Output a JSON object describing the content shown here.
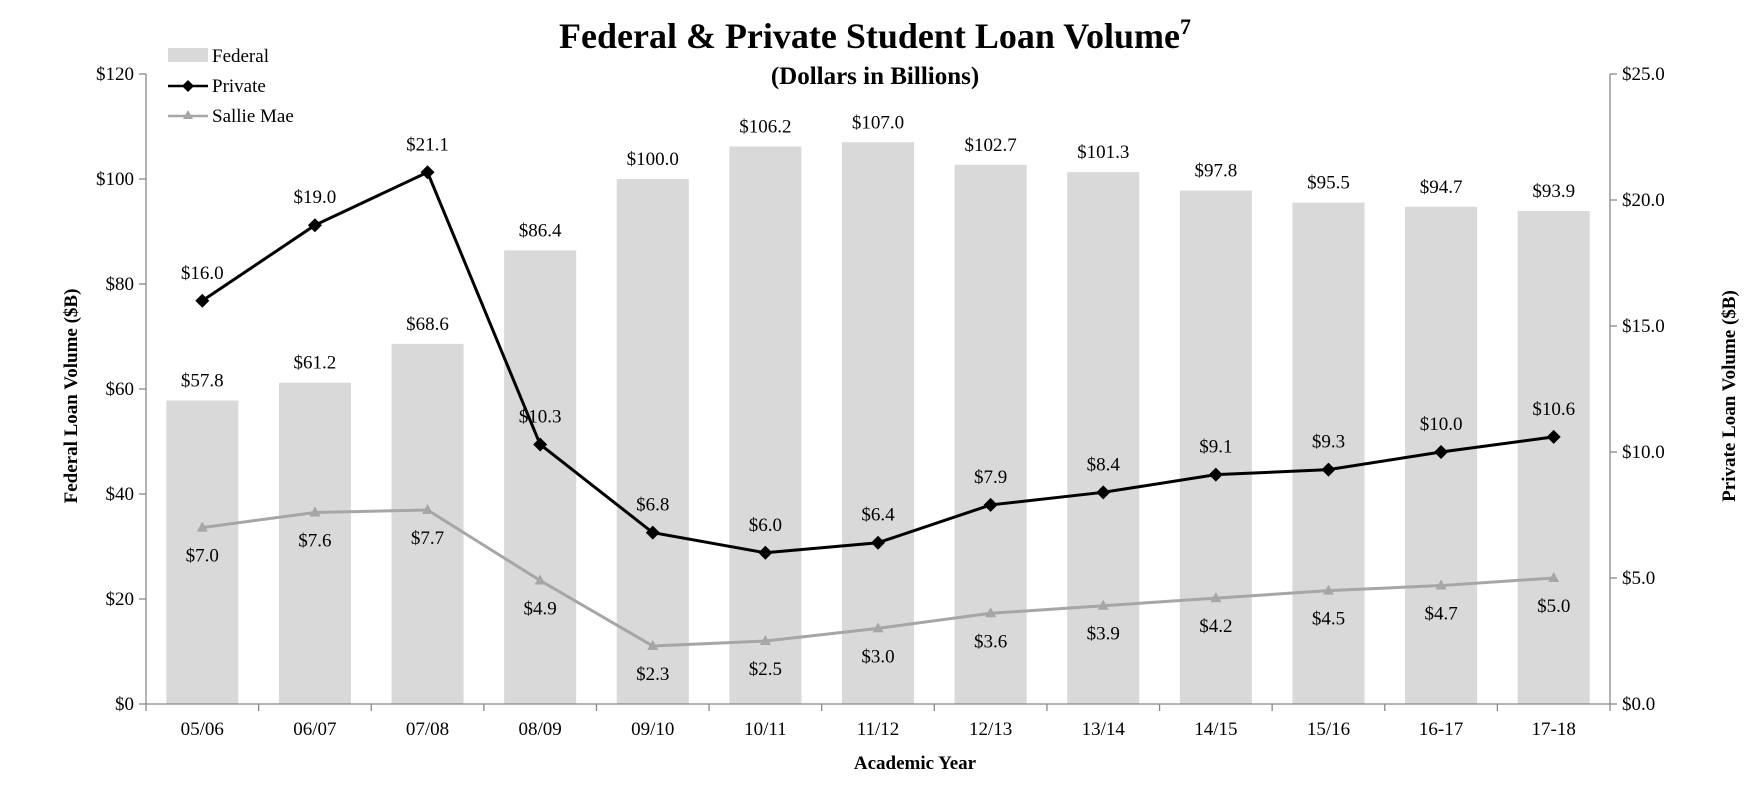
{
  "chart_data": {
    "type": "bar",
    "title": "Federal & Private Student Loan Volume",
    "title_superscript": "7",
    "subtitle": "(Dollars in Billions)",
    "xlabel": "Academic Year",
    "ylabel": "Federal Loan Volume ($B)",
    "ylabel_right": "Private Loan Volume ($B)",
    "ylim": [
      0,
      120
    ],
    "ylim_right": [
      0,
      25
    ],
    "y_ticks": [
      {
        "value": 0,
        "label": "$0"
      },
      {
        "value": 20,
        "label": "$20"
      },
      {
        "value": 40,
        "label": "$40"
      },
      {
        "value": 60,
        "label": "$60"
      },
      {
        "value": 80,
        "label": "$80"
      },
      {
        "value": 100,
        "label": "$100"
      },
      {
        "value": 120,
        "label": "$120"
      }
    ],
    "y_ticks_right": [
      {
        "value": 0,
        "label": "$0.0"
      },
      {
        "value": 5,
        "label": "$5.0"
      },
      {
        "value": 10,
        "label": "$10.0"
      },
      {
        "value": 15,
        "label": "$15.0"
      },
      {
        "value": 20,
        "label": "$20.0"
      },
      {
        "value": 25,
        "label": "$25.0"
      }
    ],
    "grid": false,
    "legend_position": "top-left",
    "categories": [
      "05/06",
      "06/07",
      "07/08",
      "08/09",
      "09/10",
      "10/11",
      "11/12",
      "12/13",
      "13/14",
      "14/15",
      "15/16",
      "16-17",
      "17-18"
    ],
    "series": [
      {
        "name": "Federal",
        "type": "bar",
        "axis": "left",
        "color": "#d9d9d9",
        "values": [
          57.8,
          61.2,
          68.6,
          86.4,
          100.0,
          106.2,
          107.0,
          102.7,
          101.3,
          97.8,
          95.5,
          94.7,
          93.9
        ],
        "labels": [
          "$57.8",
          "$61.2",
          "$68.6",
          "$86.4",
          "$100.0",
          "$106.2",
          "$107.0",
          "$102.7",
          "$101.3",
          "$97.8",
          "$95.5",
          "$94.7",
          "$93.9"
        ]
      },
      {
        "name": "Private",
        "type": "line",
        "axis": "right",
        "color": "#000000",
        "marker": "diamond",
        "values": [
          16.0,
          19.0,
          21.1,
          10.3,
          6.8,
          6.0,
          6.4,
          7.9,
          8.4,
          9.1,
          9.3,
          10.0,
          10.6
        ],
        "labels": [
          "$16.0",
          "$19.0",
          "$21.1",
          "$10.3",
          "$6.8",
          "$6.0",
          "$6.4",
          "$7.9",
          "$8.4",
          "$9.1",
          "$9.3",
          "$10.0",
          "$10.6"
        ]
      },
      {
        "name": "Sallie Mae",
        "type": "line",
        "axis": "right",
        "color": "#a6a6a6",
        "marker": "triangle",
        "values": [
          7.0,
          7.6,
          7.7,
          4.9,
          2.3,
          2.5,
          3.0,
          3.6,
          3.9,
          4.2,
          4.5,
          4.7,
          5.0
        ],
        "labels": [
          "$7.0",
          "$7.6",
          "$7.7",
          "$4.9",
          "$2.3",
          "$2.5",
          "$3.0",
          "$3.6",
          "$3.9",
          "$4.2",
          "$4.5",
          "$4.7",
          "$5.0"
        ]
      }
    ]
  }
}
